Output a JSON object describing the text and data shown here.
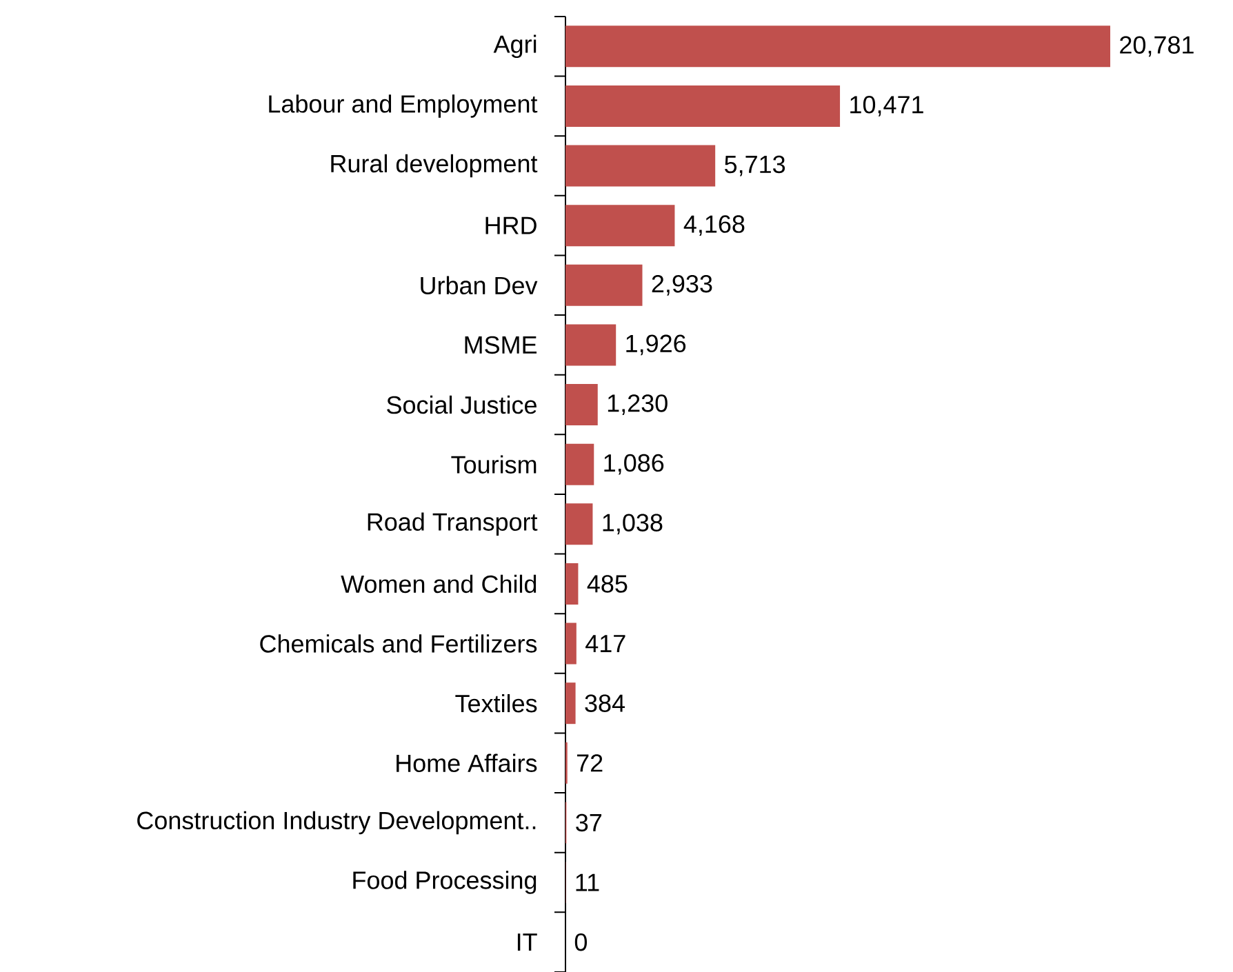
{
  "chart_data": {
    "type": "bar",
    "orientation": "horizontal",
    "categories": [
      "Agri",
      "Labour and Employment",
      "Rural development",
      "HRD",
      "Urban Dev",
      "MSME",
      "Social Justice",
      "Tourism",
      "Road Transport",
      "Women and Child",
      "Chemicals and Fertilizers",
      "Textiles",
      "Home Affairs",
      "Construction Industry Development..",
      "Food Processing",
      "IT"
    ],
    "values": [
      20781,
      10471,
      5713,
      4168,
      2933,
      1926,
      1230,
      1086,
      1038,
      485,
      417,
      384,
      72,
      37,
      11,
      0
    ],
    "value_labels": [
      "20,781",
      "10,471",
      "5,713",
      "4,168",
      "2,933",
      "1,926",
      "1,230",
      "1,086",
      "1,038",
      "485",
      "417",
      "384",
      "72",
      "37",
      "11",
      "0"
    ],
    "color": "#c0504d"
  }
}
